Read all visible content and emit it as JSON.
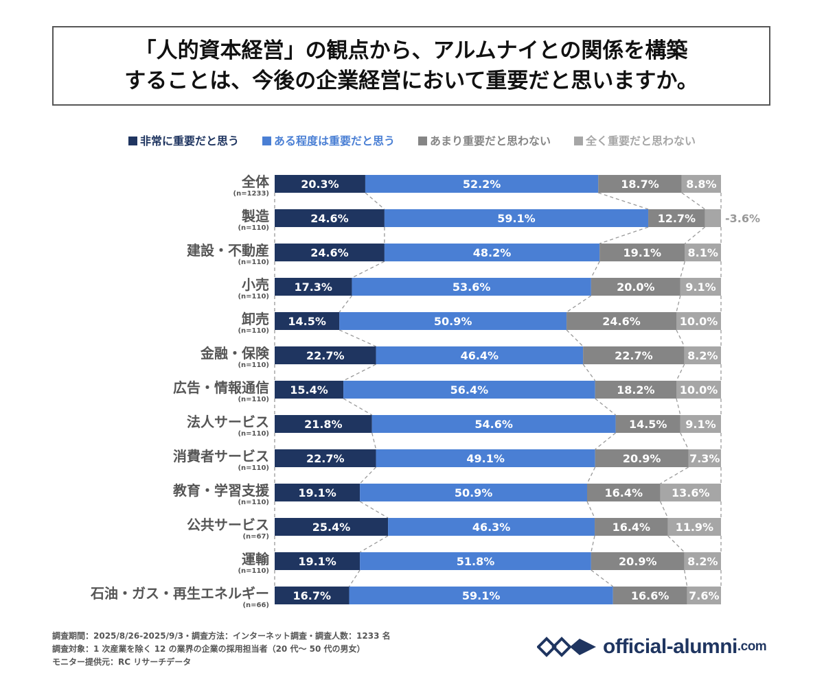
{
  "title": {
    "line1": "「人的資本経営」の観点から、アルムナイとの関係を構築",
    "line2": "することは、今後の企業経営において重要だと思いますか。"
  },
  "chart_data": {
    "type": "bar",
    "orientation": "horizontal-stacked-100",
    "legend_position": "top",
    "grid": false,
    "series": [
      {
        "name": "非常に重要だと思う",
        "color": "#1f3560",
        "values": [
          20.3,
          24.6,
          24.6,
          17.3,
          14.5,
          22.7,
          15.4,
          21.8,
          22.7,
          19.1,
          25.4,
          19.1,
          16.7
        ]
      },
      {
        "name": "ある程度は重要だと思う",
        "color": "#4a7fd4",
        "values": [
          52.2,
          59.1,
          48.2,
          53.6,
          50.9,
          46.4,
          56.4,
          54.6,
          49.1,
          50.9,
          46.3,
          51.8,
          59.1
        ]
      },
      {
        "name": "あまり重要だと思わない",
        "color": "#858585",
        "values": [
          18.7,
          12.7,
          19.1,
          20.0,
          24.6,
          22.7,
          18.2,
          14.5,
          20.9,
          16.4,
          16.4,
          20.9,
          16.6
        ]
      },
      {
        "name": "全く重要だと思わない",
        "color": "#a6a6a6",
        "values": [
          8.8,
          3.6,
          8.1,
          9.1,
          10.0,
          8.2,
          10.0,
          9.1,
          7.3,
          13.6,
          11.9,
          8.2,
          7.6
        ]
      }
    ],
    "categories": [
      "全体",
      "製造",
      "建設・不動産",
      "小売",
      "卸売",
      "金融・保険",
      "広告・情報通信",
      "法人サービス",
      "消費者サービス",
      "教育・学習支援",
      "公共サービス",
      "運輸",
      "石油・ガス・再生エネルギー"
    ],
    "sample_sizes": [
      "(n=1233)",
      "(n=110)",
      "(n=110)",
      "(n=110)",
      "(n=110)",
      "(n=110)",
      "(n=110)",
      "(n=110)",
      "(n=110)",
      "(n=110)",
      "(n=67)",
      "(n=110)",
      "(n=66)"
    ]
  },
  "footer": {
    "line1": "調査期間：2025/8/26-2025/9/3・調査方法：インターネット調査・調査人数：1233 名",
    "line2": "調査対象：1 次産業を除く 12 の業界の企業の採用担当者（20 代～ 50 代の男女）",
    "line3": "モニター提供元：RC リサーチデータ"
  },
  "logo": {
    "text": "official-alumni",
    "suffix": ".com",
    "color": "#1f3560"
  }
}
